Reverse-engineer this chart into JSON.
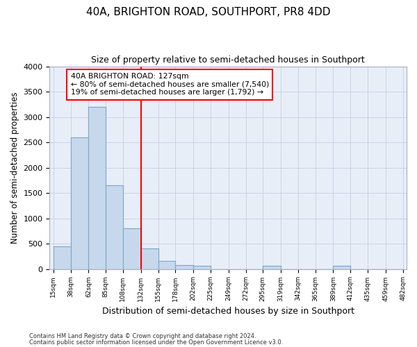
{
  "title": "40A, BRIGHTON ROAD, SOUTHPORT, PR8 4DD",
  "subtitle": "Size of property relative to semi-detached houses in Southport",
  "xlabel": "Distribution of semi-detached houses by size in Southport",
  "ylabel": "Number of semi-detached properties",
  "footer1": "Contains HM Land Registry data © Crown copyright and database right 2024.",
  "footer2": "Contains public sector information licensed under the Open Government Licence v3.0.",
  "bin_edges": [
    15,
    38,
    62,
    85,
    108,
    132,
    155,
    178,
    202,
    225,
    249,
    272,
    295,
    319,
    342,
    365,
    389,
    412,
    435,
    459,
    482
  ],
  "bar_heights": [
    450,
    2600,
    3200,
    1650,
    800,
    400,
    160,
    80,
    60,
    0,
    0,
    0,
    60,
    0,
    0,
    0,
    60,
    0,
    0,
    0
  ],
  "bar_color": "#c8d8ec",
  "bar_edge_color": "#7aaac8",
  "tick_labels": [
    "15sqm",
    "38sqm",
    "62sqm",
    "85sqm",
    "108sqm",
    "132sqm",
    "155sqm",
    "178sqm",
    "202sqm",
    "225sqm",
    "249sqm",
    "272sqm",
    "295sqm",
    "319sqm",
    "342sqm",
    "365sqm",
    "389sqm",
    "412sqm",
    "435sqm",
    "459sqm",
    "482sqm"
  ],
  "ylim": [
    0,
    4000
  ],
  "yticks": [
    0,
    500,
    1000,
    1500,
    2000,
    2500,
    3000,
    3500,
    4000
  ],
  "property_label": "40A BRIGHTON ROAD: 127sqm",
  "annotation_line1": "← 80% of semi-detached houses are smaller (7,540)",
  "annotation_line2": "19% of semi-detached houses are larger (1,792) →",
  "vline_x": 132,
  "grid_color": "#c8d4e4",
  "background_color": "#e8eef8"
}
